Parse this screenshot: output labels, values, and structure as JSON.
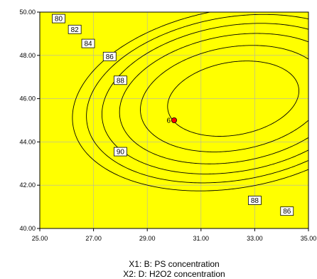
{
  "chart_data": {
    "type": "contour",
    "xlim": [
      25,
      35
    ],
    "ylim": [
      40,
      50
    ],
    "x_ticks": [
      "25.00",
      "27.00",
      "29.00",
      "31.00",
      "33.00",
      "35.00"
    ],
    "y_ticks": [
      "40.00",
      "42.00",
      "44.00",
      "46.00",
      "48.00",
      "50.00"
    ],
    "x_tick_values": [
      25,
      27,
      29,
      31,
      33,
      35
    ],
    "y_tick_values": [
      40,
      42,
      44,
      46,
      48,
      50
    ],
    "grid": true,
    "fill_color": "#ffff00",
    "model": {
      "max": 92,
      "center": [
        32.2,
        46.0
      ],
      "a": 3.5,
      "b": 1.02,
      "c": 6.9
    },
    "contours": [
      {
        "level": 80,
        "label": "80",
        "label_at": [
          25.7,
          49.7
        ]
      },
      {
        "level": 82,
        "label": "82",
        "label_at": [
          26.3,
          49.2
        ]
      },
      {
        "level": 84,
        "label": "84",
        "label_at": [
          26.8,
          48.55
        ]
      },
      {
        "level": 86,
        "label": "86",
        "label_at": [
          27.6,
          47.95
        ]
      },
      {
        "level": 88,
        "label": "88",
        "label_at": [
          28.0,
          46.85
        ]
      },
      {
        "level": 90,
        "label": "90",
        "label_at": [
          28.0,
          43.55
        ]
      },
      {
        "level": 88,
        "label": "88",
        "label_at": [
          33.0,
          41.3
        ]
      },
      {
        "level": 86,
        "label": "86",
        "label_at": [
          34.2,
          40.8
        ]
      }
    ],
    "design_point": {
      "x": 30,
      "y": 45,
      "label": "6",
      "color": "#ff0000"
    },
    "xlabel": "X1: B: PS concentration",
    "ylabel_partial": "X2: D: H2O2 concentration"
  }
}
